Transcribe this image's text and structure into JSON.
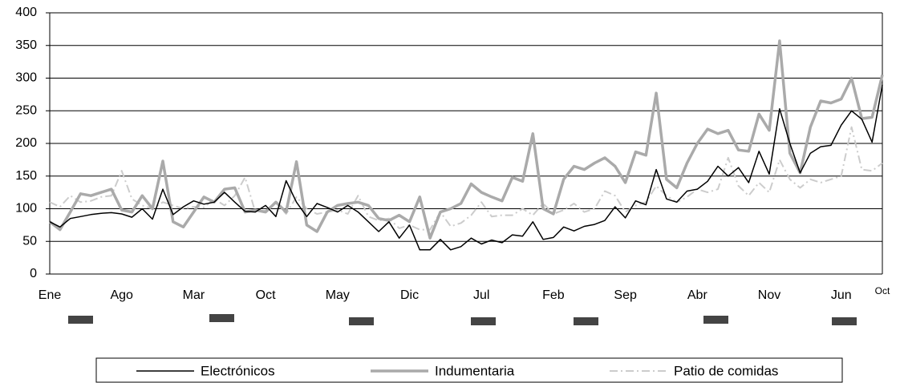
{
  "chart_data": {
    "type": "line",
    "categories": [
      "Ene",
      null,
      null,
      null,
      null,
      null,
      null,
      "Ago",
      null,
      null,
      null,
      null,
      null,
      null,
      "Mar",
      null,
      null,
      null,
      null,
      null,
      null,
      "Oct",
      null,
      null,
      null,
      null,
      null,
      null,
      "May",
      null,
      null,
      null,
      null,
      null,
      null,
      "Dic",
      null,
      null,
      null,
      null,
      null,
      null,
      "Jul",
      null,
      null,
      null,
      null,
      null,
      null,
      "Feb",
      null,
      null,
      null,
      null,
      null,
      null,
      "Sep",
      null,
      null,
      null,
      null,
      null,
      null,
      "Abr",
      null,
      null,
      null,
      null,
      null,
      null,
      "Nov",
      null,
      null,
      null,
      null,
      null,
      null,
      "Jun",
      null,
      null,
      null,
      "Oct"
    ],
    "series": [
      {
        "name": "Electrónicos",
        "color": "#000000",
        "values": [
          80,
          72,
          85,
          88,
          91,
          93,
          94,
          92,
          87,
          100,
          84,
          130,
          91,
          103,
          112,
          107,
          110,
          125,
          110,
          96,
          95,
          105,
          88,
          143,
          110,
          88,
          108,
          102,
          95,
          105,
          95,
          80,
          65,
          80,
          55,
          75,
          37,
          37,
          53,
          37,
          42,
          55,
          46,
          52,
          48,
          60,
          58,
          80,
          53,
          56,
          72,
          66,
          73,
          76,
          82,
          103,
          86,
          112,
          106,
          160,
          115,
          110,
          127,
          130,
          142,
          165,
          150,
          163,
          140,
          188,
          153,
          253,
          200,
          155,
          185,
          195,
          197,
          228,
          250,
          237,
          202,
          290
        ]
      },
      {
        "name": "Indumentaria",
        "color": "#aaaaaa",
        "values": [
          80,
          68,
          95,
          123,
          120,
          125,
          130,
          98,
          95,
          120,
          100,
          173,
          80,
          72,
          95,
          118,
          110,
          130,
          132,
          95,
          98,
          95,
          110,
          95,
          172,
          75,
          65,
          95,
          105,
          108,
          110,
          105,
          85,
          82,
          90,
          80,
          118,
          55,
          95,
          100,
          108,
          138,
          125,
          118,
          112,
          148,
          142,
          215,
          100,
          92,
          145,
          165,
          160,
          170,
          178,
          165,
          140,
          187,
          182,
          277,
          145,
          132,
          170,
          200,
          222,
          215,
          220,
          190,
          188,
          245,
          220,
          357,
          185,
          155,
          225,
          265,
          262,
          268,
          300,
          238,
          240,
          305
        ]
      },
      {
        "name": "Patio de comidas",
        "color": "#cccccc",
        "values": [
          110,
          103,
          120,
          110,
          112,
          118,
          120,
          158,
          115,
          105,
          100,
          110,
          105,
          100,
          103,
          102,
          115,
          105,
          120,
          148,
          95,
          97,
          110,
          92,
          118,
          100,
          92,
          95,
          98,
          92,
          120,
          88,
          82,
          85,
          70,
          75,
          68,
          68,
          95,
          73,
          78,
          90,
          110,
          88,
          90,
          90,
          100,
          90,
          108,
          92,
          98,
          108,
          95,
          100,
          127,
          120,
          95,
          105,
          110,
          135,
          120,
          110,
          118,
          130,
          125,
          130,
          178,
          135,
          120,
          140,
          125,
          175,
          145,
          132,
          145,
          140,
          145,
          150,
          225,
          160,
          158,
          170
        ]
      }
    ],
    "ylim": [
      0,
      400
    ],
    "yticks": [
      0,
      50,
      100,
      150,
      200,
      250,
      300,
      350,
      400
    ],
    "grid": true
  }
}
